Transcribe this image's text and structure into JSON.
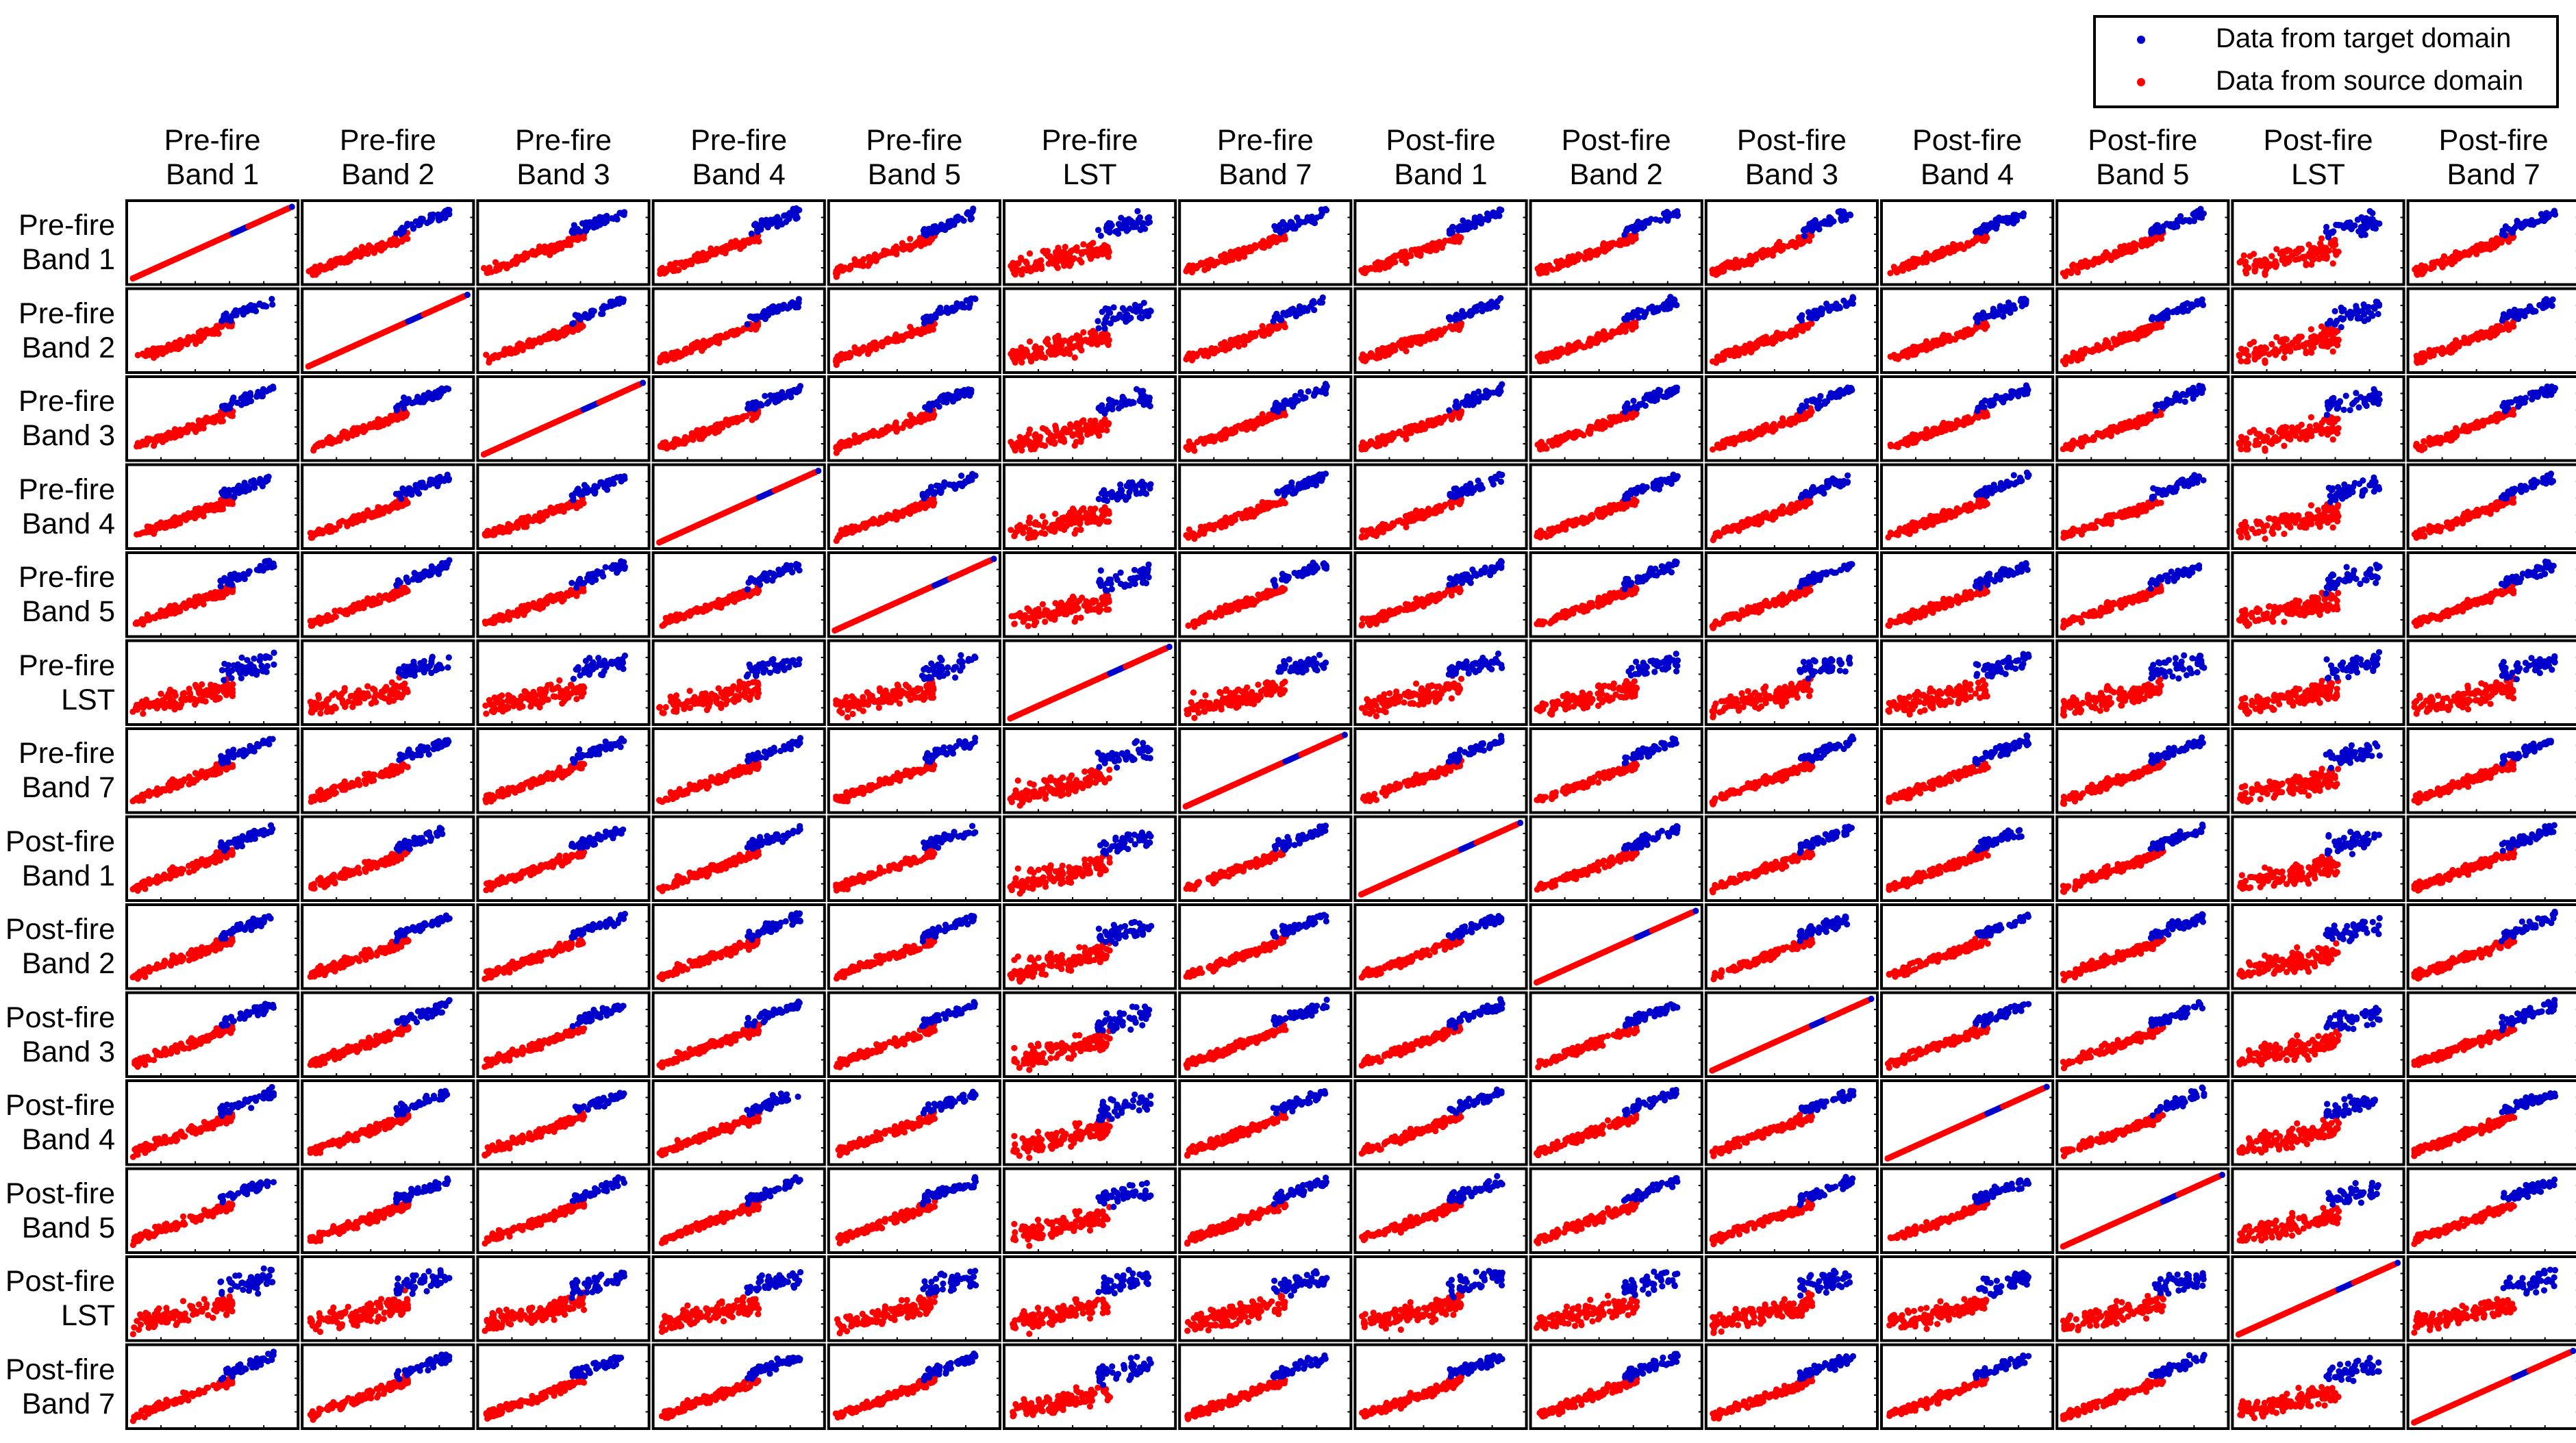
{
  "chart_data": {
    "type": "scatter",
    "layout": "scatter-matrix",
    "variables": [
      {
        "line1": "Pre-fire",
        "line2": "Band 1"
      },
      {
        "line1": "Pre-fire",
        "line2": "Band 2"
      },
      {
        "line1": "Pre-fire",
        "line2": "Band 3"
      },
      {
        "line1": "Pre-fire",
        "line2": "Band 4"
      },
      {
        "line1": "Pre-fire",
        "line2": "Band 5"
      },
      {
        "line1": "Pre-fire",
        "line2": "LST"
      },
      {
        "line1": "Pre-fire",
        "line2": "Band 7"
      },
      {
        "line1": "Post-fire",
        "line2": "Band 1"
      },
      {
        "line1": "Post-fire",
        "line2": "Band 2"
      },
      {
        "line1": "Post-fire",
        "line2": "Band 3"
      },
      {
        "line1": "Post-fire",
        "line2": "Band 4"
      },
      {
        "line1": "Post-fire",
        "line2": "Band 5"
      },
      {
        "line1": "Post-fire",
        "line2": "LST"
      },
      {
        "line1": "Post-fire",
        "line2": "Band 7"
      }
    ],
    "series": [
      {
        "name": "Data from target domain",
        "color": "#0000cc",
        "points_per_panel": 48,
        "range": [
          0.55,
          1.0
        ]
      },
      {
        "name": "Data from source domain",
        "color": "#ff0000",
        "points_per_panel": 120,
        "range": [
          0.0,
          0.6
        ]
      }
    ],
    "legend_position": "top-right",
    "legend": [
      {
        "label": "Data from target domain",
        "color": "#0000cc"
      },
      {
        "label": "Data from source domain",
        "color": "#ff0000"
      }
    ]
  }
}
